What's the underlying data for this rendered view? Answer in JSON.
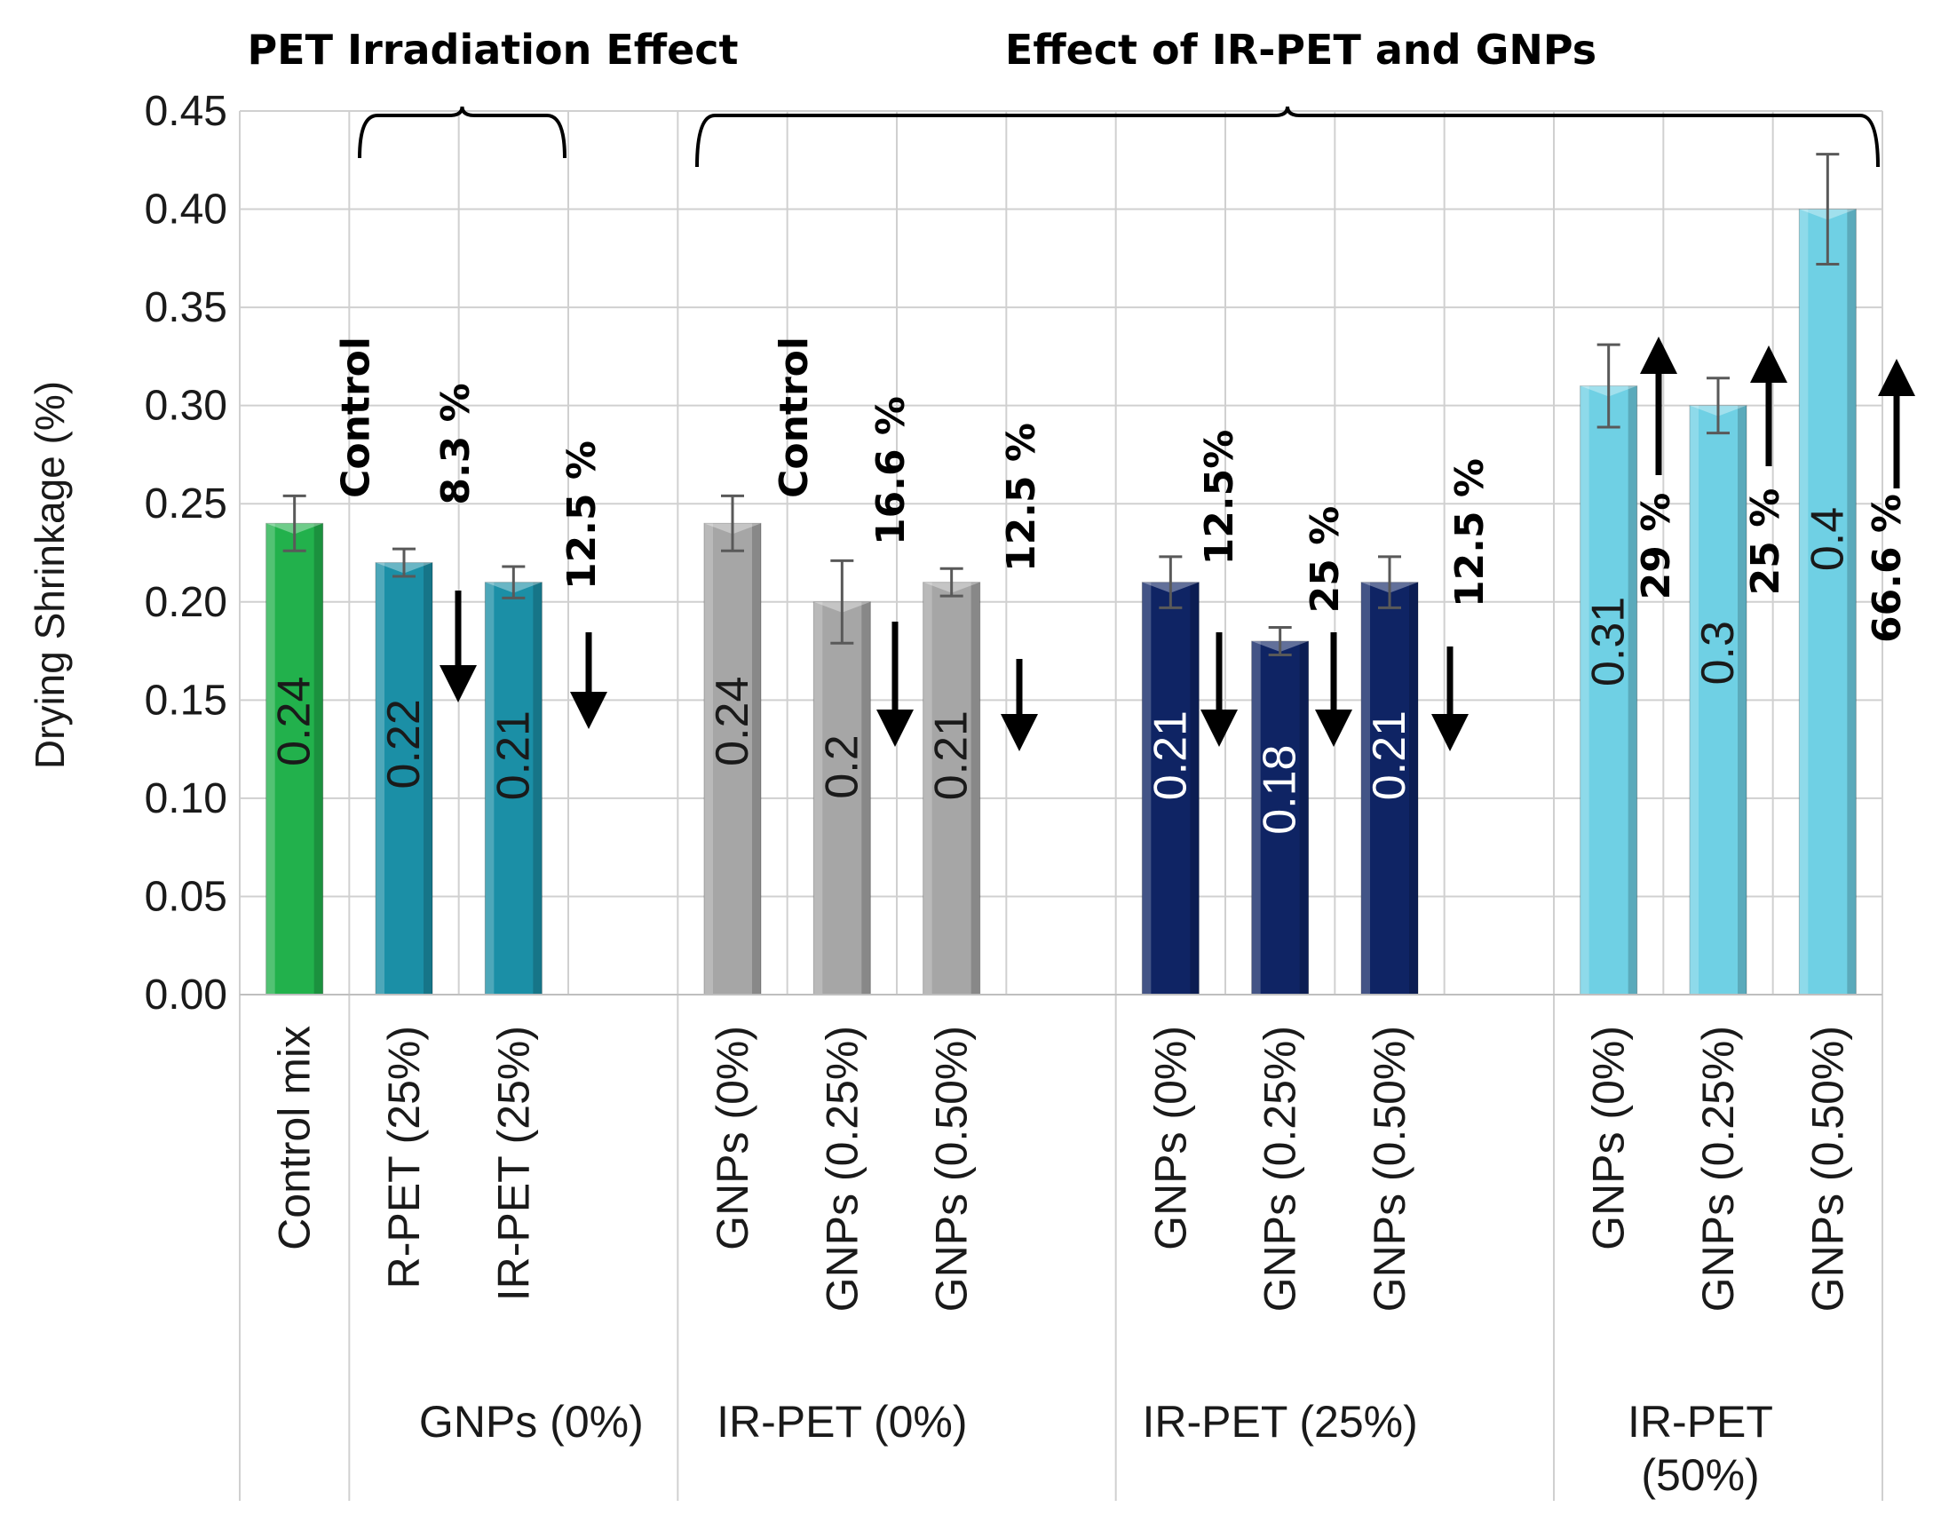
{
  "chart_data": {
    "type": "bar",
    "ylabel": "Drying Shrinkage (%)",
    "xlabel": "",
    "ylim": [
      0,
      0.45
    ],
    "yticks": [
      "0.00",
      "0.05",
      "0.10",
      "0.15",
      "0.20",
      "0.25",
      "0.30",
      "0.35",
      "0.40",
      "0.45"
    ],
    "grid": true,
    "bars": [
      {
        "label": "Control mix",
        "value": 0.24,
        "value_label": "0.24",
        "error": 0.014,
        "color": "#22b14c",
        "label_color": "#1a1a1a"
      },
      {
        "label": "R-PET (25%)",
        "value": 0.22,
        "value_label": "0.22",
        "error": 0.007,
        "color": "#1b8fa6",
        "label_color": "#1a1a1a"
      },
      {
        "label": "IR-PET (25%)",
        "value": 0.21,
        "value_label": "0.21",
        "error": 0.008,
        "color": "#1b8fa6",
        "label_color": "#1a1a1a"
      },
      {
        "label": "GNPs (0%)",
        "value": 0.24,
        "value_label": "0.24",
        "error": 0.014,
        "color": "#a6a6a6",
        "label_color": "#1a1a1a"
      },
      {
        "label": "GNPs (0.25%)",
        "value": 0.2,
        "value_label": "0.2",
        "error": 0.021,
        "color": "#a6a6a6",
        "label_color": "#1a1a1a"
      },
      {
        "label": "GNPs (0.50%)",
        "value": 0.21,
        "value_label": "0.21",
        "error": 0.007,
        "color": "#a6a6a6",
        "label_color": "#1a1a1a"
      },
      {
        "label": "GNPs (0%)",
        "value": 0.21,
        "value_label": "0.21",
        "error": 0.013,
        "color": "#0f2464",
        "label_color": "#ffffff"
      },
      {
        "label": "GNPs (0.25%)",
        "value": 0.18,
        "value_label": "0.18",
        "error": 0.007,
        "color": "#0f2464",
        "label_color": "#ffffff"
      },
      {
        "label": "GNPs (0.50%)",
        "value": 0.21,
        "value_label": "0.21",
        "error": 0.013,
        "color": "#0f2464",
        "label_color": "#ffffff"
      },
      {
        "label": "GNPs (0%)",
        "value": 0.31,
        "value_label": "0.31",
        "error": 0.021,
        "color": "#6fd0e4",
        "label_color": "#1a1a1a"
      },
      {
        "label": "GNPs (0.25%)",
        "value": 0.3,
        "value_label": "0.3",
        "error": 0.014,
        "color": "#6fd0e4",
        "label_color": "#1a1a1a"
      },
      {
        "label": "GNPs (0.50%)",
        "value": 0.4,
        "value_label": "0.4",
        "error": 0.028,
        "color": "#6fd0e4",
        "label_color": "#1a1a1a"
      }
    ],
    "groups": [
      {
        "label": "",
        "bars": [
          0
        ]
      },
      {
        "label": "GNPs (0%)",
        "bars": [
          1,
          2
        ]
      },
      {
        "label": "IR-PET (0%)",
        "bars": [
          3,
          4,
          5
        ]
      },
      {
        "label": "IR-PET (25%)",
        "bars": [
          6,
          7,
          8
        ]
      },
      {
        "label": "IR-PET (50%)",
        "bars": [
          9,
          10,
          11
        ]
      }
    ],
    "annotations": {
      "brace_titles": [
        "PET Irradiation Effect",
        "Effect of IR-PET and GNPs"
      ],
      "control_labels": [
        "Control",
        "Control"
      ],
      "changes": [
        {
          "bar": 1,
          "text": "8.3 %",
          "direction": "down"
        },
        {
          "bar": 2,
          "text": "12.5 %",
          "direction": "down"
        },
        {
          "bar": 4,
          "text": "16.6 %",
          "direction": "down"
        },
        {
          "bar": 5,
          "text": "12.5 %",
          "direction": "down"
        },
        {
          "bar": 6,
          "text": "12.5%",
          "direction": "down"
        },
        {
          "bar": 7,
          "text": "25 %",
          "direction": "down"
        },
        {
          "bar": 8,
          "text": "12.5 %",
          "direction": "down"
        },
        {
          "bar": 9,
          "text": "29 %",
          "direction": "up"
        },
        {
          "bar": 10,
          "text": "25 %",
          "direction": "up"
        },
        {
          "bar": 11,
          "text": "66.6 %",
          "direction": "up"
        }
      ]
    }
  }
}
